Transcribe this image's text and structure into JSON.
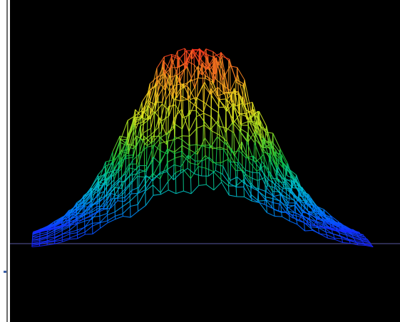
{
  "image": {
    "description_free": true,
    "background_color": "#000000",
    "frame_color": "#ffffff",
    "rule_color": "#6b6b6b",
    "surface": {
      "type": "3d-wireframe-surface",
      "colormap": [
        "#1a1aff",
        "#0070ff",
        "#00c0d0",
        "#10c040",
        "#a0e020",
        "#f0e020",
        "#f09020",
        "#ff3020"
      ],
      "baseline_color": "#3a3a6a"
    }
  }
}
